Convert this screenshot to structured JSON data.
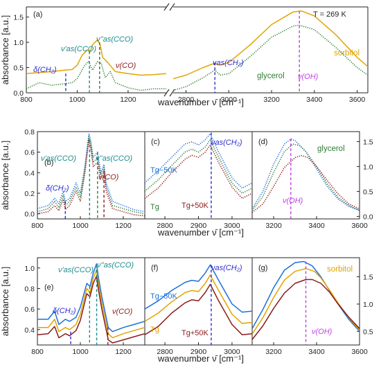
{
  "figure": {
    "xlabel": "wavenumber ν̄ [cm⁻¹]",
    "ylabel": "absorbance [a.u.]",
    "colors": {
      "sorbitol": "#e0a400",
      "glycerol": "#2e7d32",
      "blue": "#1e6fd9",
      "darkred": "#8b1a1a",
      "teal": "#1a8a8a",
      "violet": "#c040e0",
      "navy": "#2a2ad0"
    }
  },
  "chart_data": [
    {
      "id": "a",
      "panel_label": "(a)",
      "type": "line",
      "broken_x": true,
      "xlim_left": [
        800,
        1350
      ],
      "xlim_right": [
        2740,
        3650
      ],
      "ylim": [
        0,
        1.7
      ],
      "xticks": [
        800,
        1000,
        1200,
        2800,
        3000,
        3200,
        3400,
        3600
      ],
      "yticks": [
        0.0,
        0.5,
        1.0,
        1.5
      ],
      "ytick_labels": [
        "0.0",
        "0.5",
        "1.0",
        "1.5"
      ],
      "text_annotations": [
        "T = 269 K",
        "δ(CH₂)",
        "ν'as(CCO)",
        "ν''as(CCO)",
        "ν(CO)",
        "νas(CH₂)",
        "glycerol",
        "sorbitol",
        "ν(OH)"
      ],
      "series": [
        {
          "name": "sorbitol",
          "style": "solid",
          "x": [
            800,
            850,
            900,
            950,
            980,
            1000,
            1020,
            1040,
            1050,
            1060,
            1080,
            1090,
            1100,
            1120,
            1150,
            1200,
            1250,
            1300,
            1350,
            2740,
            2800,
            2880,
            2930,
            2960,
            3000,
            3100,
            3200,
            3300,
            3340,
            3400,
            3500,
            3600,
            3650
          ],
          "y": [
            0.38,
            0.4,
            0.42,
            0.45,
            0.46,
            0.55,
            0.75,
            0.85,
            0.8,
            0.95,
            1.05,
            0.95,
            0.7,
            0.6,
            0.42,
            0.38,
            0.35,
            0.36,
            0.38,
            0.28,
            0.35,
            0.5,
            0.58,
            0.55,
            0.6,
            0.95,
            1.35,
            1.6,
            1.62,
            1.52,
            1.15,
            0.7,
            0.52
          ]
        },
        {
          "name": "glycerol",
          "style": "dotted",
          "x": [
            800,
            850,
            900,
            950,
            980,
            1000,
            1030,
            1045,
            1060,
            1080,
            1095,
            1110,
            1130,
            1150,
            1200,
            1250,
            1300,
            1350,
            2740,
            2800,
            2880,
            2935,
            2960,
            3000,
            3100,
            3200,
            3300,
            3330,
            3400,
            3500,
            3600,
            3650
          ],
          "y": [
            0.08,
            0.2,
            0.15,
            0.18,
            0.2,
            0.28,
            0.55,
            0.62,
            0.45,
            0.62,
            0.58,
            0.3,
            0.42,
            0.2,
            0.1,
            0.05,
            0.08,
            0.08,
            0.05,
            0.12,
            0.3,
            0.45,
            0.35,
            0.38,
            0.72,
            1.1,
            1.32,
            1.34,
            1.25,
            0.9,
            0.5,
            0.35
          ]
        }
      ]
    },
    {
      "id": "b",
      "panel_label": "(b)",
      "type": "line",
      "xlim": [
        800,
        1300
      ],
      "ylim": [
        -0.05,
        0.8
      ],
      "xticks": [
        800,
        1000,
        1200
      ],
      "yticks": [
        0.0,
        0.2,
        0.4,
        0.6,
        0.8
      ],
      "ytick_labels": [
        "0.0",
        "0.2",
        "0.4",
        "0.6",
        "0.8"
      ],
      "text_annotations": [
        "ν'as(CCO)",
        "ν''as(CCO)",
        "δ(CH₂)",
        "ν(CO)"
      ],
      "series": [
        {
          "name": "Tg−50K",
          "style": "dotted",
          "x": [
            800,
            850,
            880,
            900,
            920,
            930,
            950,
            980,
            1000,
            1020,
            1040,
            1048,
            1060,
            1080,
            1095,
            1110,
            1120,
            1150,
            1200,
            1250,
            1300
          ],
          "y": [
            0.05,
            0.08,
            0.15,
            0.1,
            0.22,
            0.12,
            0.15,
            0.3,
            0.2,
            0.45,
            0.78,
            0.72,
            0.55,
            0.6,
            0.4,
            0.48,
            0.3,
            0.12,
            0.08,
            0.04,
            0.02
          ]
        },
        {
          "name": "Tg",
          "style": "dotted",
          "x": [
            800,
            850,
            880,
            900,
            920,
            930,
            950,
            980,
            1000,
            1020,
            1040,
            1048,
            1060,
            1080,
            1095,
            1110,
            1120,
            1150,
            1200,
            1250,
            1300
          ],
          "y": [
            0.02,
            0.05,
            0.12,
            0.06,
            0.18,
            0.08,
            0.12,
            0.26,
            0.16,
            0.42,
            0.75,
            0.68,
            0.5,
            0.55,
            0.38,
            0.45,
            0.26,
            0.08,
            0.05,
            0.02,
            0.0
          ]
        },
        {
          "name": "Tg+50K",
          "style": "dotted",
          "x": [
            800,
            850,
            880,
            900,
            920,
            930,
            950,
            980,
            1000,
            1020,
            1040,
            1048,
            1060,
            1080,
            1095,
            1110,
            1120,
            1150,
            1200,
            1250,
            1300
          ],
          "y": [
            0.0,
            0.02,
            0.08,
            0.03,
            0.14,
            0.04,
            0.08,
            0.22,
            0.12,
            0.38,
            0.72,
            0.64,
            0.46,
            0.5,
            0.34,
            0.42,
            0.22,
            0.05,
            0.02,
            -0.01,
            -0.02
          ]
        }
      ]
    },
    {
      "id": "c",
      "panel_label": "(c)",
      "type": "line",
      "xlim": [
        2740,
        3060
      ],
      "ylim": [
        -0.05,
        0.8
      ],
      "xticks": [
        2800,
        2900,
        3000
      ],
      "text_annotations": [
        "νas(CH₂)",
        "Tg−50K",
        "Tg",
        "Tg+50K"
      ],
      "series": [
        {
          "name": "Tg−50K",
          "style": "dotted",
          "x": [
            2740,
            2780,
            2820,
            2860,
            2880,
            2900,
            2920,
            2935,
            2960,
            3000,
            3030,
            3060
          ],
          "y": [
            0.3,
            0.42,
            0.55,
            0.68,
            0.7,
            0.67,
            0.72,
            0.78,
            0.6,
            0.35,
            0.25,
            0.3
          ]
        },
        {
          "name": "Tg",
          "style": "dotted",
          "x": [
            2740,
            2780,
            2820,
            2860,
            2880,
            2900,
            2920,
            2935,
            2960,
            3000,
            3030,
            3060
          ],
          "y": [
            0.22,
            0.33,
            0.47,
            0.6,
            0.63,
            0.6,
            0.65,
            0.72,
            0.55,
            0.3,
            0.2,
            0.25
          ]
        },
        {
          "name": "Tg+50K",
          "style": "dotted",
          "x": [
            2740,
            2780,
            2820,
            2860,
            2880,
            2900,
            2920,
            2935,
            2960,
            3000,
            3030,
            3060
          ],
          "y": [
            0.15,
            0.25,
            0.4,
            0.53,
            0.57,
            0.55,
            0.6,
            0.67,
            0.5,
            0.26,
            0.15,
            0.2
          ]
        }
      ]
    },
    {
      "id": "d",
      "panel_label": "(d)",
      "type": "line",
      "xlim": [
        3100,
        3600
      ],
      "ylim": [
        -0.05,
        1.7
      ],
      "xticks": [
        3200,
        3400,
        3600
      ],
      "yticks": [
        0.0,
        0.5,
        1.0,
        1.5
      ],
      "ytick_labels": [
        "0.0",
        "0.5",
        "1.0",
        "1.5"
      ],
      "text_annotations": [
        "glycerol",
        "ν(OH)"
      ],
      "series": [
        {
          "name": "Tg−50K",
          "style": "dotted",
          "x": [
            3100,
            3150,
            3200,
            3250,
            3280,
            3300,
            3350,
            3400,
            3450,
            3500,
            3550,
            3600
          ],
          "y": [
            0.15,
            0.5,
            1.05,
            1.45,
            1.55,
            1.52,
            1.3,
            0.95,
            0.6,
            0.35,
            0.2,
            0.12
          ]
        },
        {
          "name": "Tg",
          "style": "dotted",
          "x": [
            3100,
            3150,
            3200,
            3250,
            3290,
            3320,
            3350,
            3400,
            3450,
            3500,
            3550,
            3600
          ],
          "y": [
            0.12,
            0.4,
            0.88,
            1.3,
            1.45,
            1.42,
            1.3,
            1.0,
            0.65,
            0.38,
            0.22,
            0.12
          ]
        },
        {
          "name": "Tg+50K",
          "style": "dotted",
          "x": [
            3100,
            3150,
            3200,
            3250,
            3300,
            3330,
            3360,
            3400,
            3450,
            3500,
            3550,
            3600
          ],
          "y": [
            0.08,
            0.25,
            0.6,
            0.98,
            1.18,
            1.22,
            1.18,
            1.0,
            0.72,
            0.45,
            0.25,
            0.15
          ]
        }
      ]
    },
    {
      "id": "e",
      "panel_label": "(e)",
      "type": "line",
      "xlim": [
        800,
        1300
      ],
      "ylim": [
        0.25,
        1.1
      ],
      "xticks": [
        800,
        1000,
        1200
      ],
      "yticks": [
        0.4,
        0.6,
        0.8,
        1.0
      ],
      "ytick_labels": [
        "0.4",
        "0.6",
        "0.8",
        "1.0"
      ],
      "text_annotations": [
        "ν'as(CCO)",
        "ν''as(CCO)",
        "δ(CH₂)",
        "ν(CO)"
      ],
      "series": [
        {
          "name": "Tg−50K",
          "style": "solid",
          "x": [
            800,
            850,
            880,
            900,
            930,
            950,
            980,
            1000,
            1030,
            1045,
            1060,
            1075,
            1085,
            1100,
            1130,
            1150,
            1200,
            1250,
            1300
          ],
          "y": [
            0.5,
            0.5,
            0.58,
            0.45,
            0.5,
            0.48,
            0.52,
            0.62,
            0.85,
            0.82,
            0.95,
            1.04,
            0.9,
            0.72,
            0.42,
            0.38,
            0.42,
            0.45,
            0.48
          ]
        },
        {
          "name": "Tg",
          "style": "solid",
          "x": [
            800,
            850,
            880,
            900,
            930,
            950,
            980,
            1000,
            1030,
            1045,
            1060,
            1075,
            1085,
            1100,
            1130,
            1150,
            1200,
            1250,
            1300
          ],
          "y": [
            0.42,
            0.42,
            0.5,
            0.38,
            0.42,
            0.4,
            0.45,
            0.55,
            0.8,
            0.76,
            0.9,
            0.98,
            0.84,
            0.66,
            0.36,
            0.32,
            0.36,
            0.39,
            0.42
          ]
        },
        {
          "name": "Tg+50K",
          "style": "solid",
          "x": [
            800,
            850,
            880,
            900,
            930,
            950,
            980,
            1000,
            1030,
            1045,
            1060,
            1075,
            1085,
            1100,
            1130,
            1150,
            1200,
            1250,
            1300
          ],
          "y": [
            0.35,
            0.36,
            0.43,
            0.32,
            0.36,
            0.34,
            0.39,
            0.49,
            0.75,
            0.72,
            0.85,
            0.92,
            0.78,
            0.6,
            0.3,
            0.27,
            0.3,
            0.33,
            0.36
          ]
        }
      ]
    },
    {
      "id": "f",
      "panel_label": "(f)",
      "type": "line",
      "xlim": [
        2740,
        3060
      ],
      "ylim": [
        0.25,
        1.1
      ],
      "xticks": [
        2800,
        2900,
        3000
      ],
      "text_annotations": [
        "νas(CH₂)",
        "Tg−50K",
        "Tg",
        "Tg+50K"
      ],
      "series": [
        {
          "name": "Tg−50K",
          "style": "solid",
          "x": [
            2740,
            2780,
            2820,
            2860,
            2880,
            2900,
            2920,
            2935,
            2960,
            3000,
            3030,
            3060
          ],
          "y": [
            0.6,
            0.68,
            0.78,
            0.86,
            0.88,
            0.87,
            0.95,
            1.03,
            0.88,
            0.65,
            0.57,
            0.58
          ]
        },
        {
          "name": "Tg",
          "style": "solid",
          "x": [
            2740,
            2780,
            2820,
            2860,
            2880,
            2900,
            2920,
            2935,
            2960,
            3000,
            3030,
            3060
          ],
          "y": [
            0.48,
            0.56,
            0.67,
            0.76,
            0.78,
            0.77,
            0.85,
            0.93,
            0.78,
            0.55,
            0.46,
            0.47
          ]
        },
        {
          "name": "Tg+50K",
          "style": "solid",
          "x": [
            2740,
            2780,
            2820,
            2860,
            2880,
            2900,
            2920,
            2935,
            2960,
            3000,
            3030,
            3060
          ],
          "y": [
            0.35,
            0.43,
            0.56,
            0.66,
            0.69,
            0.68,
            0.76,
            0.84,
            0.68,
            0.45,
            0.35,
            0.36
          ]
        }
      ]
    },
    {
      "id": "g",
      "panel_label": "(g)",
      "type": "line",
      "xlim": [
        3100,
        3600
      ],
      "ylim": [
        0.25,
        1.85
      ],
      "xticks": [
        3200,
        3400,
        3600
      ],
      "yticks": [
        0.5,
        1.0,
        1.5
      ],
      "ytick_labels": [
        "0.5",
        "1.0",
        "1.5"
      ],
      "text_annotations": [
        "sorbitol",
        "ν(OH)"
      ],
      "series": [
        {
          "name": "Tg−50K",
          "style": "solid",
          "x": [
            3100,
            3150,
            3200,
            3250,
            3300,
            3340,
            3380,
            3420,
            3460,
            3500,
            3550,
            3600
          ],
          "y": [
            0.55,
            0.9,
            1.3,
            1.62,
            1.76,
            1.78,
            1.7,
            1.5,
            1.25,
            1.0,
            0.72,
            0.5
          ]
        },
        {
          "name": "Tg",
          "style": "solid",
          "x": [
            3100,
            3150,
            3200,
            3250,
            3300,
            3350,
            3390,
            3420,
            3460,
            3500,
            3550,
            3600
          ],
          "y": [
            0.45,
            0.75,
            1.12,
            1.44,
            1.6,
            1.65,
            1.6,
            1.48,
            1.26,
            1.02,
            0.75,
            0.52
          ]
        },
        {
          "name": "Tg+50K",
          "style": "solid",
          "x": [
            3100,
            3150,
            3200,
            3250,
            3300,
            3350,
            3380,
            3420,
            3460,
            3500,
            3550,
            3600
          ],
          "y": [
            0.35,
            0.6,
            0.92,
            1.2,
            1.38,
            1.45,
            1.45,
            1.38,
            1.22,
            1.0,
            0.76,
            0.55
          ]
        }
      ]
    }
  ]
}
